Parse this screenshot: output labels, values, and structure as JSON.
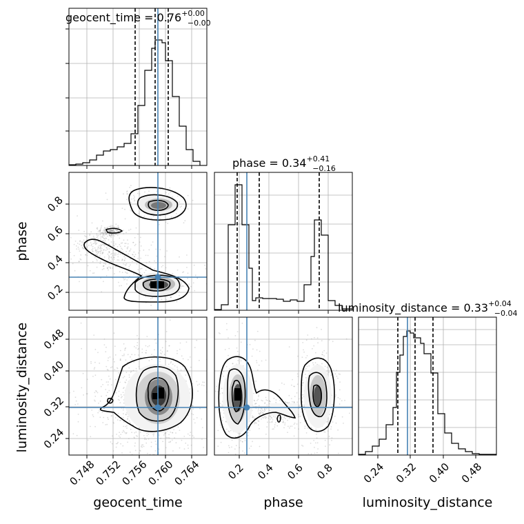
{
  "chart_data": {
    "type": "corner",
    "parameters": [
      "geocent_time",
      "phase",
      "luminosity_distance"
    ],
    "truths": {
      "geocent_time": 0.7583,
      "phase": 0.25,
      "luminosity_distance": 0.315
    },
    "titles": [
      {
        "param": "geocent_time",
        "prefix": "geocent_time = 0.76",
        "plus": "+0.00",
        "minus": "−0.00"
      },
      {
        "param": "phase",
        "prefix": "phase = 0.34",
        "plus": "+0.41",
        "minus": "−0.16"
      },
      {
        "param": "luminosity_distance",
        "prefix": "luminosity_distance = 0.33",
        "plus": "+0.04",
        "minus": "−0.04"
      }
    ],
    "axes": {
      "geocent_time": {
        "range": [
          0.7445,
          0.7655
        ],
        "ticks": [
          "0.748",
          "0.752",
          "0.756",
          "0.760",
          "0.764"
        ]
      },
      "phase": {
        "range": [
          0.03,
          0.97
        ],
        "ticks": [
          "0.2",
          "0.4",
          "0.6",
          "0.8"
        ]
      },
      "luminosity_distance": {
        "range": [
          0.21,
          0.555
        ],
        "ticks": [
          "0.24",
          "0.32",
          "0.40",
          "0.48"
        ]
      }
    },
    "marginals": {
      "geocent_time": {
        "bins": [
          0.7445,
          0.74555,
          0.7466,
          0.74765,
          0.7487,
          0.74975,
          0.7508,
          0.75185,
          0.7529,
          0.75395,
          0.755,
          0.75605,
          0.7571,
          0.75815,
          0.7592,
          0.76025,
          0.7613,
          0.76235,
          0.7634,
          0.76445,
          0.7655
        ],
        "counts": [
          0.5,
          1,
          2,
          4,
          7,
          9,
          10,
          12,
          14,
          19,
          30,
          36,
          50,
          59,
          58,
          50,
          28,
          10,
          3,
          0.5
        ],
        "quantiles": [
          0.7548,
          0.7576,
          0.7595
        ]
      },
      "phase": {
        "bins": [
          0.03,
          0.077,
          0.124,
          0.171,
          0.218,
          0.265,
          0.312,
          0.359,
          0.406,
          0.453,
          0.5,
          0.547,
          0.594,
          0.641,
          0.688,
          0.735,
          0.782,
          0.829,
          0.876,
          0.923,
          0.97
        ],
        "counts": [
          1,
          3,
          49,
          26,
          3,
          6,
          8,
          8,
          8,
          8,
          7,
          8,
          7,
          13,
          40,
          36,
          6,
          3,
          1,
          0.3
        ],
        "quantiles": [
          0.18,
          0.34,
          0.75
        ]
      },
      "luminosity_distance": {
        "bins": [
          0.21,
          0.227,
          0.244,
          0.261,
          0.278,
          0.295,
          0.312,
          0.329,
          0.346,
          0.363,
          0.38,
          0.397,
          0.414,
          0.431,
          0.448,
          0.465,
          0.482,
          0.499,
          0.516,
          0.533,
          0.55
        ],
        "counts": [
          1,
          4,
          8,
          12,
          22,
          33,
          43,
          44,
          41,
          36,
          26,
          15,
          10,
          6,
          4,
          2.5,
          1.5,
          0.5,
          0.2,
          0.1
        ],
        "quantiles": [
          0.29,
          0.33,
          0.37
        ]
      }
    }
  }
}
